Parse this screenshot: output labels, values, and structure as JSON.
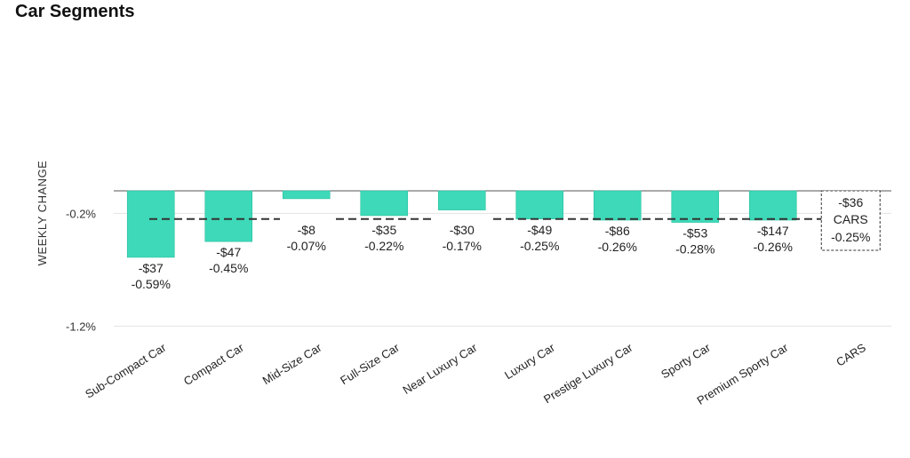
{
  "title": "Car Segments",
  "chart_data": {
    "type": "bar",
    "title": "Car Segments",
    "ylabel": "WEEKLY CHANGE",
    "xlabel": "",
    "y_tick_labels": [
      "-0.2%",
      "-1.2%"
    ],
    "y_ticks": [
      -0.2,
      -1.2
    ],
    "ylim": [
      -1.2,
      0
    ],
    "categories": [
      "Sub-Compact Car",
      "Compact Car",
      "Mid-Size Car",
      "Full-Size Car",
      "Near Luxury Car",
      "Luxury Car",
      "Prestige Luxury Car",
      "Sporty Car",
      "Premium Sporty Car",
      "CARS"
    ],
    "values": [
      -0.59,
      -0.45,
      -0.07,
      -0.22,
      -0.17,
      -0.25,
      -0.26,
      -0.28,
      -0.26,
      -0.25
    ],
    "dollar_labels": [
      "-$37",
      "-$47",
      "-$8",
      "-$35",
      "-$30",
      "-$49",
      "-$86",
      "-$53",
      "-$147",
      "-$36"
    ],
    "pct_labels": [
      "-0.59%",
      "-0.45%",
      "-0.07%",
      "-0.22%",
      "-0.17%",
      "-0.25%",
      "-0.26%",
      "-0.28%",
      "-0.26%",
      "-0.25%"
    ],
    "reference_line": {
      "value": -0.25
    },
    "summary_box": {
      "dollar": "-$36",
      "name": "CARS",
      "pct": "-0.25%"
    },
    "bar_color": "#3dd9b9",
    "bar_border": "#2bbf9f",
    "grid": true
  }
}
